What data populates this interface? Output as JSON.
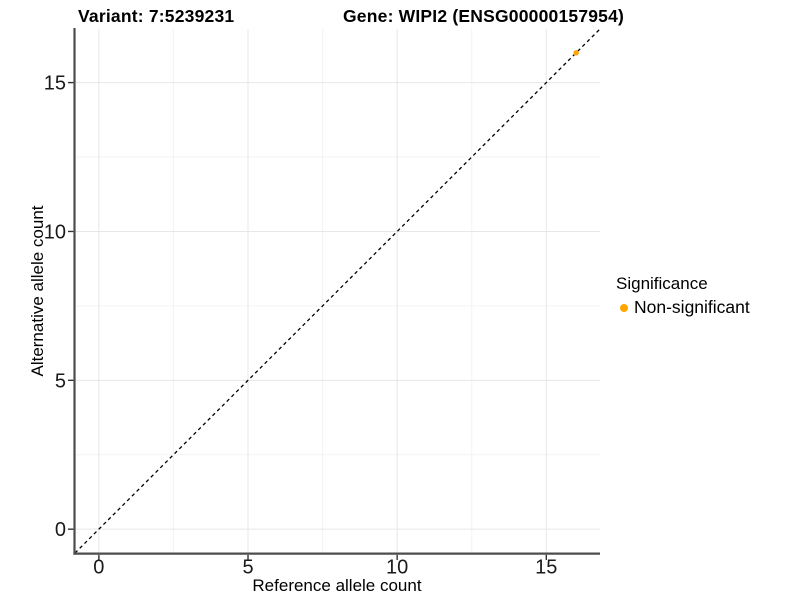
{
  "titles": {
    "variant": "Variant: 7:5239231",
    "gene": "Gene: WIPI2 (ENSG00000157954)"
  },
  "chart_data": {
    "type": "scatter",
    "xlabel": "Reference allele count",
    "ylabel": "Alternative allele count",
    "xlim": [
      -0.8,
      16.8
    ],
    "ylim": [
      -0.8,
      16.8
    ],
    "x_ticks": [
      0,
      5,
      10,
      15
    ],
    "y_ticks": [
      0,
      5,
      10,
      15
    ],
    "x_minor_ticks": [
      2.5,
      7.5,
      12.5
    ],
    "y_minor_ticks": [
      2.5,
      7.5,
      12.5
    ],
    "grid": true,
    "reference_line": {
      "type": "identity y=x",
      "style": "dashed",
      "color": "#000000"
    },
    "points": [
      {
        "x": 16,
        "y": 16,
        "series": "Non-significant"
      }
    ],
    "legend": {
      "title": "Significance",
      "position": "right",
      "entries": [
        {
          "label": "Non-significant",
          "color": "#FFA500"
        }
      ]
    },
    "colors": {
      "point": "#FFA500",
      "axis_line": "#4d4d4d",
      "tick_mark": "#333333",
      "tick_label": "#1a1a1a",
      "grid_major": "#e7e7e7",
      "grid_minor": "#f3f3f3"
    }
  }
}
